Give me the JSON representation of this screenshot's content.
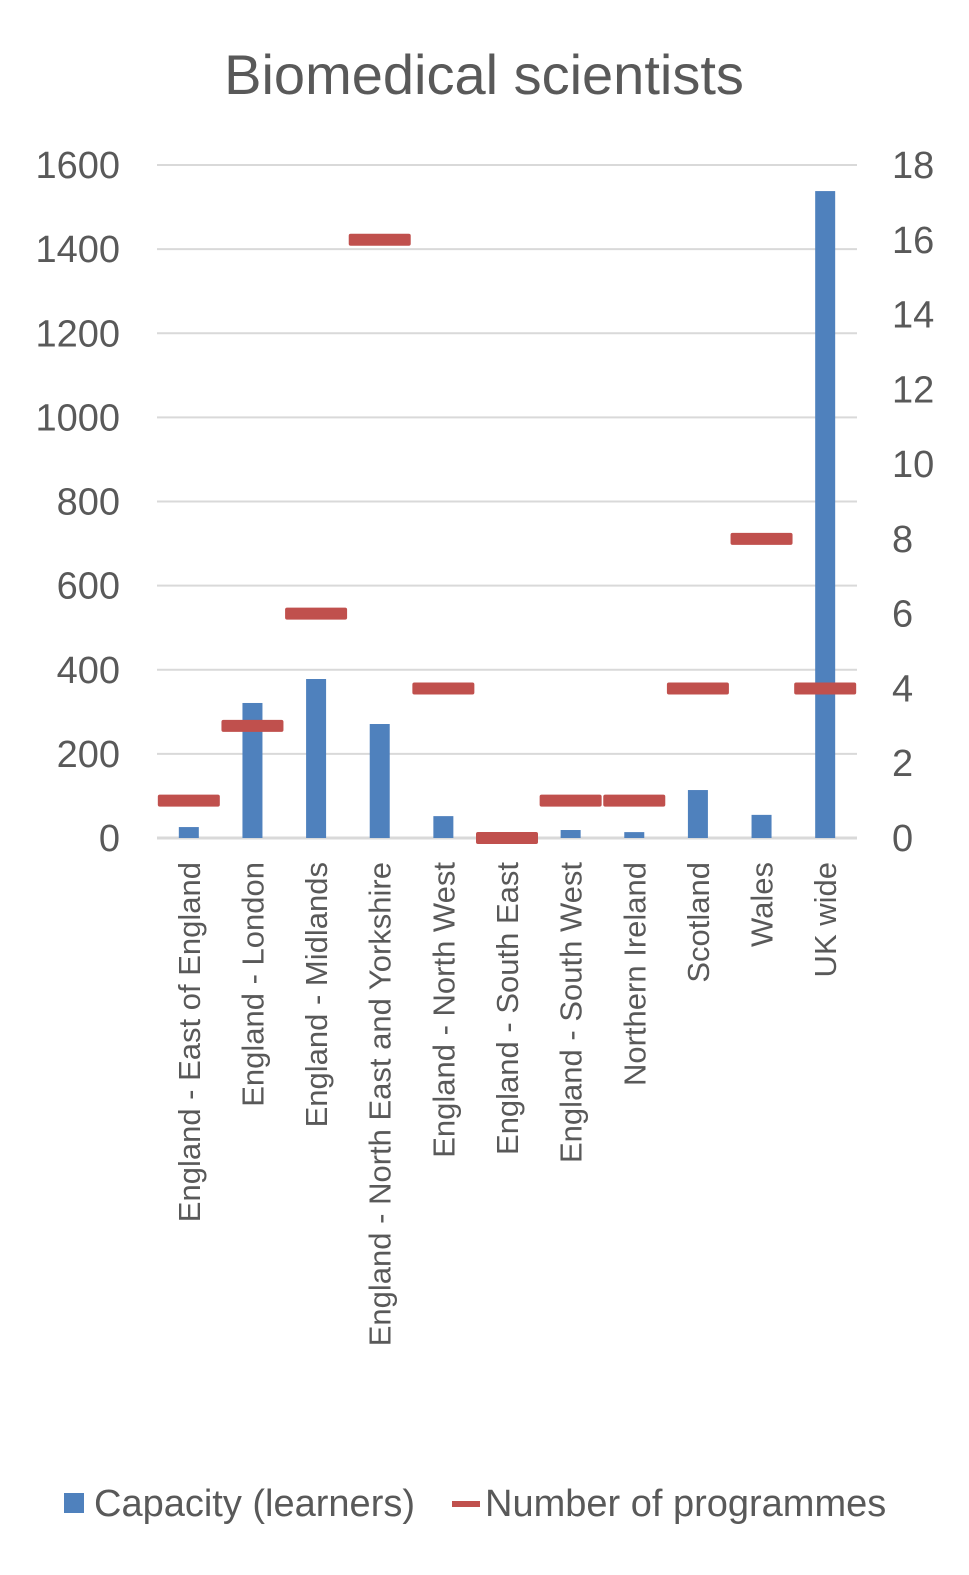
{
  "chart_data": {
    "type": "bar",
    "title": "Biomedical scientists",
    "categories": [
      "England - East of England",
      "England - London",
      "England - Midlands",
      "England - North East and Yorkshire",
      "England - North West",
      "England - South East",
      "England - South West",
      "Northern Ireland",
      "Scotland",
      "Wales",
      "UK wide"
    ],
    "series": [
      {
        "name": "Capacity (learners)",
        "axis": "left",
        "kind": "bar",
        "color": "#4F81BD",
        "values": [
          26,
          321,
          378,
          271,
          52,
          0,
          19,
          14,
          114,
          55,
          1538
        ]
      },
      {
        "name": "Number of programmes",
        "axis": "right",
        "kind": "marker",
        "color": "#C0504D",
        "values": [
          1,
          3,
          6,
          16,
          4,
          0,
          1,
          1,
          4,
          8,
          4
        ]
      }
    ],
    "ylim": [
      0,
      1600
    ],
    "yticks": [
      "0",
      "200",
      "400",
      "600",
      "800",
      "1000",
      "1200",
      "1400",
      "1600"
    ],
    "y2lim": [
      0,
      18
    ],
    "y2ticks": [
      "0",
      "2",
      "4",
      "6",
      "8",
      "10",
      "12",
      "14",
      "16",
      "18"
    ],
    "grid": true,
    "legend_position": "bottom"
  }
}
